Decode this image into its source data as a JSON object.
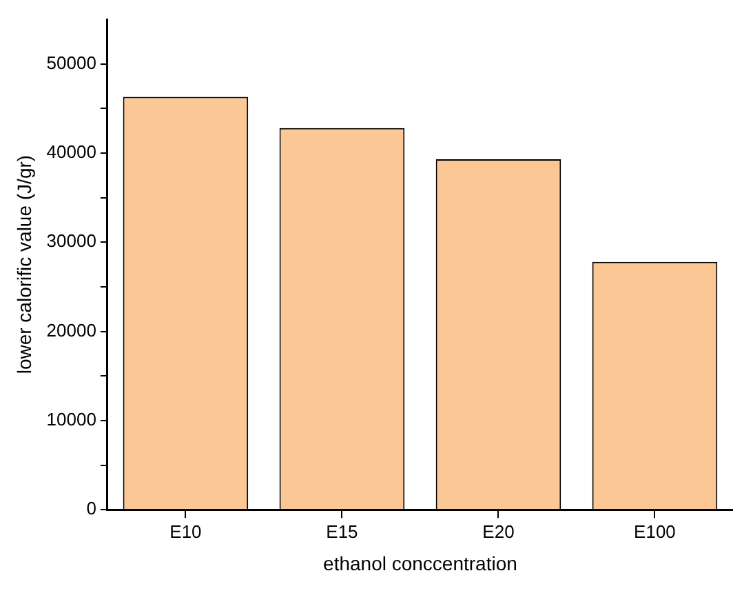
{
  "chart_data": {
    "type": "bar",
    "xlabel": "ethanol conccentration",
    "ylabel": "lower calorific value (J/gr)",
    "categories": [
      "E10",
      "E15",
      "E20",
      "E100"
    ],
    "values": [
      46300,
      42800,
      39300,
      27800
    ],
    "color": "#fbc895",
    "ylim": [
      0,
      55000
    ],
    "yticks": [
      0,
      {
        "value": 5000,
        "label": null
      },
      10000,
      {
        "value": 15000,
        "label": null
      },
      20000,
      {
        "value": 25000,
        "label": null
      },
      30000,
      {
        "value": 35000,
        "label": null
      },
      40000,
      {
        "value": 45000,
        "label": null
      },
      50000
    ],
    "grid": false,
    "legend": false
  }
}
